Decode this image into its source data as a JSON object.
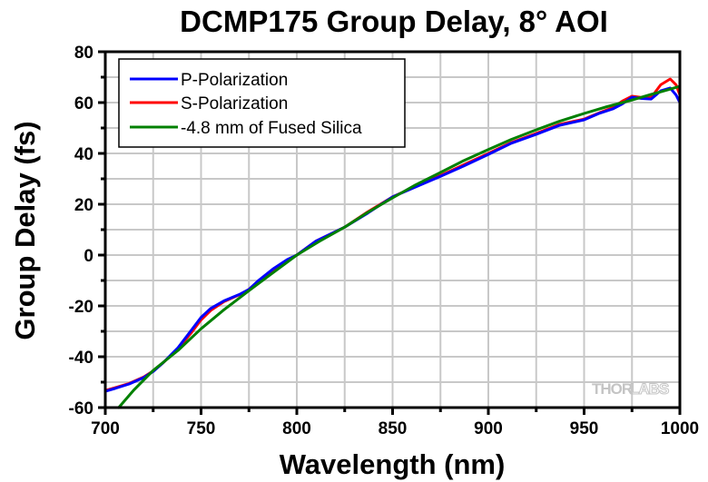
{
  "chart_data": {
    "type": "line",
    "title": "DCMP175 Group Delay, 8° AOI",
    "xlabel": "Wavelength (nm)",
    "ylabel": "Group Delay (fs)",
    "xlim": [
      700,
      1000
    ],
    "ylim": [
      -60,
      80
    ],
    "xticks": [
      700,
      750,
      800,
      850,
      900,
      950,
      1000
    ],
    "xtick_labels": [
      "700",
      "750",
      "800",
      "850",
      "900",
      "950",
      "1000"
    ],
    "yticks": [
      80,
      60,
      40,
      20,
      0,
      -20,
      -40,
      -60
    ],
    "ytick_labels": [
      "80",
      "60",
      "40",
      "20",
      "0",
      "-20",
      "-40",
      "-60"
    ],
    "x_grid_step": 25,
    "y_grid_step": 10,
    "grid": true,
    "legend_position": "top-left",
    "watermark": {
      "left": "THOR",
      "right": "LABS"
    },
    "series": [
      {
        "name": "P-Polarization",
        "color": "#0000ff",
        "x": [
          700,
          705,
          712.5,
          720,
          725,
          730,
          738,
          745,
          750,
          755,
          762,
          770,
          775,
          780,
          787.5,
          795,
          800,
          810,
          825,
          837,
          850,
          862,
          875,
          887,
          900,
          912,
          925,
          937,
          950,
          958,
          965,
          970,
          975,
          980,
          985,
          990,
          995,
          998,
          1000
        ],
        "y": [
          -53.6,
          -52.5,
          -50.7,
          -48.2,
          -45.8,
          -42.5,
          -36.4,
          -29.5,
          -24.5,
          -21.0,
          -18.0,
          -15.5,
          -13.5,
          -10.0,
          -5.5,
          -1.8,
          0.0,
          5.5,
          11.0,
          16.5,
          22.9,
          26.8,
          31.0,
          35.0,
          39.6,
          44.0,
          47.5,
          51.0,
          53.2,
          55.8,
          57.5,
          59.5,
          62.1,
          61.6,
          61.4,
          64.6,
          65.7,
          63.0,
          60.0
        ]
      },
      {
        "name": "S-Polarization",
        "color": "#ff0000",
        "x": [
          700,
          705,
          712.5,
          720,
          725,
          730,
          738,
          745,
          750,
          755,
          762,
          770,
          775,
          780,
          787.5,
          795,
          800,
          810,
          825,
          837,
          850,
          862,
          875,
          887,
          900,
          912,
          925,
          937,
          950,
          958,
          965,
          970,
          975,
          980,
          985,
          990,
          995,
          998,
          1000
        ],
        "y": [
          -53.3,
          -52.2,
          -50.5,
          -48.0,
          -45.6,
          -42.5,
          -36.8,
          -30.5,
          -25.5,
          -21.8,
          -18.3,
          -15.6,
          -13.5,
          -10.2,
          -6.0,
          -2.0,
          0.0,
          5.5,
          11.0,
          17.0,
          22.9,
          27.0,
          31.3,
          35.5,
          40.0,
          44.3,
          47.9,
          51.4,
          53.5,
          56.0,
          58.0,
          60.6,
          62.5,
          62.0,
          62.0,
          67.0,
          69.3,
          67.0,
          63.0
        ]
      },
      {
        "name": "-4.8 mm of Fused Silica",
        "color": "#008000",
        "x": [
          707,
          715,
          725,
          738,
          750,
          762,
          775,
          787.5,
          800,
          812,
          825,
          837,
          850,
          862,
          875,
          887,
          900,
          912,
          925,
          937,
          950,
          962,
          975,
          985,
          990,
          995,
          1000
        ],
        "y": [
          -60.0,
          -53.0,
          -45.4,
          -37.5,
          -29.0,
          -21.5,
          -14.0,
          -7.0,
          0.0,
          5.5,
          11.0,
          16.8,
          22.5,
          27.6,
          32.5,
          37.1,
          41.5,
          45.5,
          49.3,
          52.6,
          55.7,
          58.4,
          61.0,
          63.2,
          64.2,
          65.3,
          66.4
        ]
      }
    ]
  }
}
